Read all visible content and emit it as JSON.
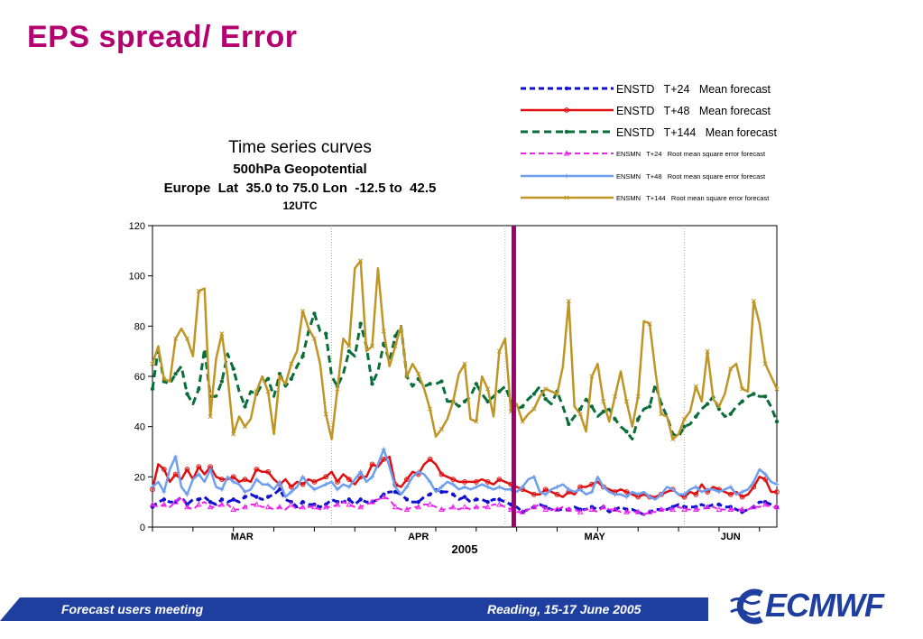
{
  "slide": {
    "title": "EPS spread/ Error",
    "footer_left": "Forecast users meeting",
    "footer_right": "Reading, 15-17 June 2005",
    "logo_text": "ECMWF"
  },
  "colors": {
    "title": "#b5006f",
    "footer_band": "#1f3fa0",
    "marker_line": "#a0006e"
  },
  "chart_data": {
    "type": "line",
    "title": "Time series curves",
    "subtitle_lines": [
      "500hPa Geopotential",
      "Europe  Lat  35.0 to 75.0 Lon  -12.5 to  42.5",
      "12UTC"
    ],
    "xlabel": "2005",
    "x_month_labels": [
      "MAR",
      "APR",
      "MAY",
      "JUN"
    ],
    "x_range_days": [
      0,
      108
    ],
    "ylim": [
      0,
      120
    ],
    "yticks": [
      0,
      20,
      40,
      60,
      80,
      100,
      120
    ],
    "vertical_marker_day": 62.5,
    "legend_position": "top-right",
    "series": [
      {
        "name": "ENSTD   T+24   Mean forecast",
        "color": "#1010d0",
        "dash": "6,4",
        "width": 3,
        "marker": "dot",
        "values": [
          8,
          10,
          11,
          10,
          10,
          12,
          9,
          11,
          11,
          12,
          10,
          9,
          11,
          10,
          11,
          10,
          12,
          13,
          12,
          11,
          12,
          13,
          15,
          11,
          10,
          8,
          10,
          9,
          9,
          8,
          9,
          11,
          10,
          10,
          11,
          9,
          11,
          10,
          10,
          11,
          13,
          14,
          14,
          13,
          11,
          10,
          10,
          12,
          13,
          15,
          14,
          14,
          13,
          11,
          12,
          10,
          11,
          11,
          10,
          11,
          11,
          10,
          9,
          8,
          6,
          7,
          8,
          9,
          8,
          7,
          7,
          7,
          7,
          8,
          7,
          7,
          8,
          7,
          8,
          6,
          7,
          8,
          7,
          7,
          6,
          5,
          6,
          7,
          7,
          7,
          8,
          9,
          8,
          8,
          8,
          9,
          8,
          9,
          9,
          8,
          8,
          7,
          6,
          7,
          8,
          10,
          10,
          9,
          8
        ]
      },
      {
        "name": "ENSTD   T+48   Mean forecast",
        "color": "#e01010",
        "dash": "",
        "width": 2.5,
        "marker": "circle",
        "values": [
          15,
          25,
          23,
          18,
          21,
          19,
          23,
          19,
          24,
          21,
          24,
          20,
          19,
          19,
          20,
          18,
          19,
          18,
          23,
          22,
          22,
          19,
          17,
          19,
          16,
          18,
          17,
          19,
          18,
          19,
          20,
          22,
          18,
          21,
          19,
          17,
          20,
          20,
          25,
          24,
          27,
          28,
          17,
          16,
          19,
          22,
          21,
          25,
          27,
          25,
          21,
          20,
          19,
          18,
          18,
          18,
          18,
          19,
          18,
          17,
          19,
          18,
          17,
          16,
          15,
          14,
          13,
          13,
          15,
          14,
          13,
          12,
          14,
          13,
          16,
          16,
          17,
          18,
          16,
          15,
          14,
          15,
          14,
          13,
          12,
          13,
          12,
          12,
          13,
          14,
          15,
          13,
          12,
          14,
          13,
          17,
          14,
          16,
          15,
          14,
          13,
          14,
          12,
          13,
          16,
          20,
          19,
          14,
          14
        ]
      },
      {
        "name": "ENSTD   T+144   Mean forecast",
        "color": "#0a6e3a",
        "dash": "8,5",
        "width": 3,
        "marker": "dot",
        "values": [
          55,
          71,
          58,
          57,
          61,
          64,
          53,
          49,
          55,
          71,
          52,
          52,
          58,
          69,
          63,
          54,
          48,
          54,
          53,
          57,
          59,
          52,
          61,
          56,
          59,
          64,
          68,
          78,
          85,
          78,
          77,
          60,
          56,
          61,
          70,
          68,
          81,
          72,
          57,
          62,
          73,
          66,
          76,
          80,
          60,
          56,
          59,
          56,
          57,
          57,
          58,
          50,
          50,
          48,
          50,
          52,
          57,
          53,
          50,
          52,
          54,
          56,
          50,
          47,
          48,
          51,
          53,
          56,
          51,
          49,
          54,
          48,
          41,
          44,
          47,
          51,
          48,
          44,
          46,
          47,
          43,
          40,
          38,
          35,
          43,
          47,
          48,
          57,
          49,
          44,
          37,
          36,
          40,
          41,
          44,
          47,
          49,
          52,
          47,
          44,
          45,
          48,
          50,
          52,
          53,
          52,
          52,
          48,
          42
        ]
      },
      {
        "name": "ENSMN   T+24   Root mean square error forecast",
        "color": "#ee22ee",
        "dash": "6,4",
        "width": 2,
        "marker": "triangle",
        "values": [
          9,
          8,
          9,
          8,
          10,
          12,
          8,
          7,
          9,
          10,
          8,
          8,
          9,
          9,
          7,
          7,
          8,
          9,
          9,
          8,
          8,
          7,
          8,
          7,
          9,
          7,
          8,
          8,
          8,
          7,
          8,
          8,
          9,
          10,
          9,
          8,
          8,
          9,
          10,
          11,
          12,
          11,
          8,
          7,
          7,
          8,
          8,
          9,
          9,
          8,
          7,
          7,
          8,
          7,
          8,
          7,
          8,
          8,
          8,
          9,
          9,
          8,
          7,
          6,
          6,
          7,
          8,
          9,
          7,
          7,
          7,
          8,
          7,
          7,
          6,
          7,
          7,
          6,
          8,
          7,
          7,
          6,
          6,
          6,
          6,
          5,
          6,
          6,
          7,
          7,
          7,
          8,
          7,
          7,
          7,
          7,
          8,
          8,
          7,
          7,
          7,
          7,
          7,
          7,
          8,
          8,
          9,
          8,
          8
        ]
      },
      {
        "name": "ENSMN   T+48   Root mean square error forecast",
        "color": "#6e9ef0",
        "dash": "",
        "width": 2.5,
        "marker": "plus",
        "values": [
          16,
          18,
          14,
          23,
          28,
          16,
          13,
          19,
          21,
          18,
          23,
          16,
          15,
          20,
          18,
          17,
          14,
          15,
          19,
          17,
          17,
          15,
          18,
          12,
          14,
          16,
          20,
          17,
          15,
          16,
          17,
          18,
          15,
          17,
          16,
          19,
          22,
          18,
          20,
          25,
          31,
          24,
          16,
          13,
          16,
          20,
          22,
          21,
          18,
          14,
          16,
          18,
          17,
          15,
          16,
          15,
          16,
          17,
          16,
          15,
          16,
          15,
          15,
          14,
          16,
          19,
          20,
          14,
          13,
          15,
          16,
          17,
          15,
          14,
          15,
          13,
          14,
          20,
          16,
          14,
          13,
          13,
          12,
          14,
          13,
          14,
          12,
          11,
          13,
          16,
          15,
          13,
          13,
          15,
          16,
          14,
          15,
          15,
          14,
          15,
          16,
          13,
          14,
          15,
          18,
          23,
          21,
          18,
          17
        ]
      },
      {
        "name": "ENSMN   T+144   Root mean square error forecast",
        "color": "#bf9526",
        "dash": "",
        "width": 2.5,
        "marker": "x",
        "values": [
          65,
          72,
          59,
          58,
          75,
          79,
          75,
          68,
          94,
          95,
          44,
          67,
          77,
          60,
          37,
          44,
          40,
          43,
          54,
          60,
          54,
          37,
          60,
          57,
          65,
          70,
          86,
          79,
          75,
          65,
          45,
          35,
          55,
          75,
          72,
          103,
          106,
          70,
          72,
          103,
          78,
          64,
          72,
          80,
          60,
          65,
          61,
          55,
          47,
          36,
          39,
          43,
          50,
          61,
          65,
          43,
          42,
          60,
          55,
          44,
          70,
          75,
          46,
          49,
          42,
          45,
          47,
          52,
          55,
          54,
          53,
          64,
          90,
          48,
          45,
          38,
          60,
          65,
          50,
          42,
          52,
          62,
          50,
          40,
          52,
          82,
          81,
          62,
          45,
          44,
          35,
          37,
          43,
          46,
          56,
          50,
          70,
          51,
          48,
          53,
          63,
          65,
          55,
          54,
          90,
          81,
          65,
          60,
          55
        ]
      }
    ]
  }
}
